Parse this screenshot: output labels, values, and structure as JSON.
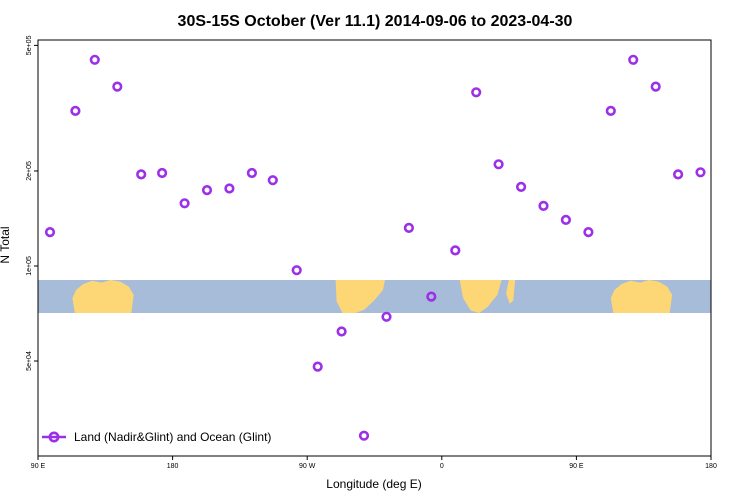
{
  "chart_data": {
    "type": "scatter",
    "title": "30S-15S October (Ver 11.1)   2014-09-06 to 2023-04-30",
    "xlabel": "Longitude (deg E)",
    "ylabel": "N Total",
    "x_ticks": [
      {
        "value": 90,
        "label": "90 E"
      },
      {
        "value": 180,
        "label": "180"
      },
      {
        "value": 270,
        "label": "90 W"
      },
      {
        "value": 360,
        "label": "0"
      },
      {
        "value": 450,
        "label": "90 E"
      },
      {
        "value": 540,
        "label": "180"
      }
    ],
    "y_ticks": [
      {
        "value": 50000,
        "label": "5e+04"
      },
      {
        "value": 100000,
        "label": "1e+05"
      },
      {
        "value": 200000,
        "label": "2e+05"
      },
      {
        "value": 500000,
        "label": "5e+05"
      }
    ],
    "xlim": [
      90,
      540
    ],
    "ylim": [
      25000,
      520000
    ],
    "y_scale": "log",
    "grid": false,
    "legend_position": "bottom-left",
    "series": [
      {
        "name": "Land (Nadir&Glint) and Ocean (Glint)",
        "color": "#9b30e8",
        "marker": "open-circle",
        "points": [
          {
            "x": 98,
            "y": 128000
          },
          {
            "x": 115,
            "y": 310000
          },
          {
            "x": 128,
            "y": 450000
          },
          {
            "x": 143,
            "y": 370000
          },
          {
            "x": 159,
            "y": 195000
          },
          {
            "x": 173,
            "y": 197000
          },
          {
            "x": 188,
            "y": 158000
          },
          {
            "x": 203,
            "y": 174000
          },
          {
            "x": 218,
            "y": 176000
          },
          {
            "x": 233,
            "y": 197000
          },
          {
            "x": 247,
            "y": 187000
          },
          {
            "x": 263,
            "y": 97000
          },
          {
            "x": 277,
            "y": 48000
          },
          {
            "x": 293,
            "y": 62000
          },
          {
            "x": 308,
            "y": 29000
          },
          {
            "x": 323,
            "y": 69000
          },
          {
            "x": 338,
            "y": 132000
          },
          {
            "x": 353,
            "y": 80000
          },
          {
            "x": 369,
            "y": 112000
          },
          {
            "x": 383,
            "y": 355000
          },
          {
            "x": 398,
            "y": 210000
          },
          {
            "x": 413,
            "y": 178000
          },
          {
            "x": 428,
            "y": 155000
          },
          {
            "x": 443,
            "y": 140000
          },
          {
            "x": 458,
            "y": 128000
          },
          {
            "x": 473,
            "y": 310000
          },
          {
            "x": 488,
            "y": 450000
          },
          {
            "x": 503,
            "y": 370000
          },
          {
            "x": 518,
            "y": 195000
          },
          {
            "x": 533,
            "y": 198000
          }
        ]
      }
    ],
    "background_map": {
      "ocean_color": "#a7bcd8",
      "land_color": "#fdd775",
      "lat_range": "30S-15S"
    }
  }
}
